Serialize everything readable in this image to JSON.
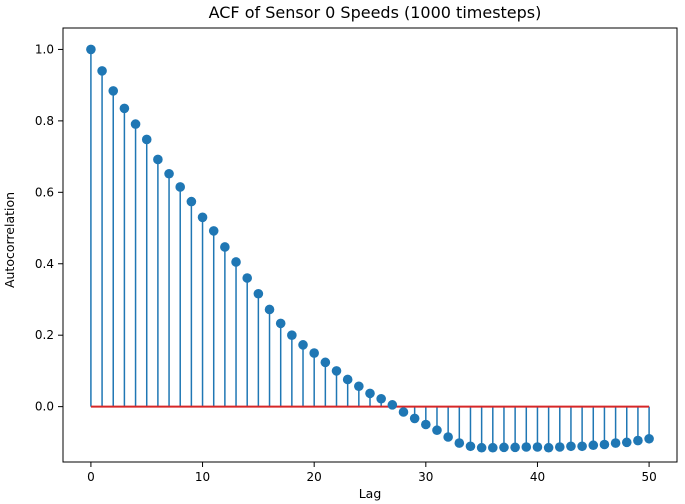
{
  "chart_data": {
    "type": "stem",
    "title": "ACF of Sensor 0 Speeds (1000 timesteps)",
    "xlabel": "Lag",
    "ylabel": "Autocorrelation",
    "xlim": [
      -2.5,
      52.5
    ],
    "ylim": [
      -0.155,
      1.06
    ],
    "xticks": [
      0,
      10,
      20,
      30,
      40,
      50
    ],
    "yticks": [
      0.0,
      0.2,
      0.4,
      0.6,
      0.8,
      1.0
    ],
    "xtick_labels": [
      "0",
      "10",
      "20",
      "30",
      "40",
      "50"
    ],
    "ytick_labels": [
      "0.0",
      "0.2",
      "0.4",
      "0.6",
      "0.8",
      "1.0"
    ],
    "grid": false,
    "baseline": 0.0,
    "colors": {
      "stem": "#1f77b4",
      "marker": "#1f77b4",
      "baseline": "#d62728"
    },
    "x": [
      0,
      1,
      2,
      3,
      4,
      5,
      6,
      7,
      8,
      9,
      10,
      11,
      12,
      13,
      14,
      15,
      16,
      17,
      18,
      19,
      20,
      21,
      22,
      23,
      24,
      25,
      26,
      27,
      28,
      29,
      30,
      31,
      32,
      33,
      34,
      35,
      36,
      37,
      38,
      39,
      40,
      41,
      42,
      43,
      44,
      45,
      46,
      47,
      48,
      49,
      50
    ],
    "values": [
      1.0,
      0.94,
      0.884,
      0.835,
      0.791,
      0.748,
      0.692,
      0.652,
      0.615,
      0.574,
      0.53,
      0.492,
      0.447,
      0.405,
      0.36,
      0.316,
      0.272,
      0.233,
      0.2,
      0.173,
      0.15,
      0.124,
      0.1,
      0.076,
      0.057,
      0.037,
      0.022,
      0.005,
      -0.015,
      -0.033,
      -0.05,
      -0.066,
      -0.085,
      -0.102,
      -0.111,
      -0.115,
      -0.115,
      -0.114,
      -0.114,
      -0.113,
      -0.113,
      -0.115,
      -0.113,
      -0.111,
      -0.111,
      -0.108,
      -0.106,
      -0.102,
      -0.1,
      -0.095,
      -0.09
    ]
  }
}
